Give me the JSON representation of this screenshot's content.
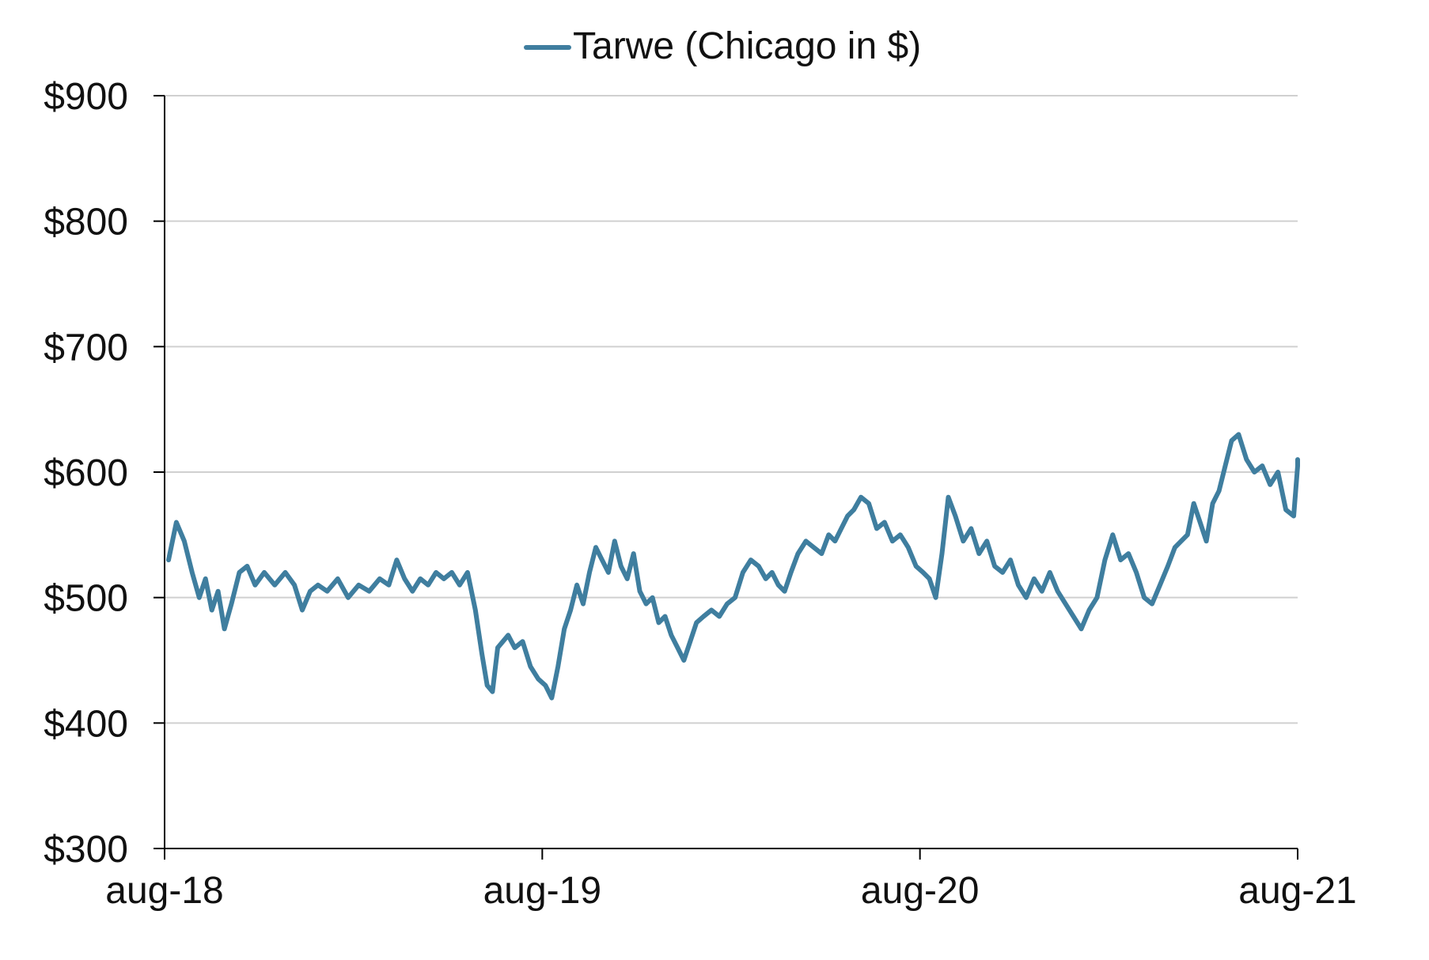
{
  "chart_data": {
    "type": "line",
    "title": "",
    "xlabel": "",
    "ylabel": "",
    "legend_position": "top-center",
    "grid": true,
    "colors": {
      "series": "#3f7e9f",
      "grid": "#d0d0d0",
      "axis": "#000000",
      "text": "#111111"
    },
    "ylim": [
      300,
      900
    ],
    "y_ticks": [
      300,
      400,
      500,
      600,
      700,
      800,
      900
    ],
    "y_tick_labels": [
      "$300",
      "$400",
      "$500",
      "$600",
      "$700",
      "$800",
      "$900"
    ],
    "xlim": [
      "2018-08",
      "2021-08"
    ],
    "x_ticks": [
      "2018-08",
      "2019-08",
      "2020-08",
      "2021-08"
    ],
    "x_tick_labels": [
      "aug-18",
      "aug-19",
      "aug-20",
      "aug-21"
    ],
    "series": [
      {
        "name": "Tarwe (Chicago in $)",
        "points": [
          [
            "2018-08",
            530
          ],
          [
            "2018-08",
            560
          ],
          [
            "2018-08",
            545
          ],
          [
            "2018-08",
            520
          ],
          [
            "2018-09",
            500
          ],
          [
            "2018-09",
            515
          ],
          [
            "2018-09",
            490
          ],
          [
            "2018-09",
            505
          ],
          [
            "2018-09",
            475
          ],
          [
            "2018-10",
            495
          ],
          [
            "2018-10",
            520
          ],
          [
            "2018-10",
            525
          ],
          [
            "2018-10",
            510
          ],
          [
            "2018-11",
            520
          ],
          [
            "2018-11",
            510
          ],
          [
            "2018-11",
            520
          ],
          [
            "2018-12",
            510
          ],
          [
            "2018-12",
            490
          ],
          [
            "2018-12",
            505
          ],
          [
            "2018-12",
            510
          ],
          [
            "2019-01",
            505
          ],
          [
            "2019-01",
            515
          ],
          [
            "2019-01",
            500
          ],
          [
            "2019-02",
            510
          ],
          [
            "2019-02",
            505
          ],
          [
            "2019-02",
            515
          ],
          [
            "2019-03",
            510
          ],
          [
            "2019-03",
            530
          ],
          [
            "2019-03",
            515
          ],
          [
            "2019-03",
            505
          ],
          [
            "2019-04",
            515
          ],
          [
            "2019-04",
            510
          ],
          [
            "2019-04",
            520
          ],
          [
            "2019-04",
            515
          ],
          [
            "2019-05",
            520
          ],
          [
            "2019-05",
            510
          ],
          [
            "2019-05",
            520
          ],
          [
            "2019-05",
            490
          ],
          [
            "2019-06",
            455
          ],
          [
            "2019-06",
            430
          ],
          [
            "2019-06",
            425
          ],
          [
            "2019-06",
            460
          ],
          [
            "2019-06",
            465
          ],
          [
            "2019-06",
            470
          ],
          [
            "2019-07",
            460
          ],
          [
            "2019-07",
            465
          ],
          [
            "2019-07",
            445
          ],
          [
            "2019-07",
            435
          ],
          [
            "2019-08",
            430
          ],
          [
            "2019-08",
            420
          ],
          [
            "2019-08",
            445
          ],
          [
            "2019-08",
            475
          ],
          [
            "2019-08",
            490
          ],
          [
            "2019-09",
            510
          ],
          [
            "2019-09",
            495
          ],
          [
            "2019-09",
            520
          ],
          [
            "2019-09",
            540
          ],
          [
            "2019-09",
            530
          ],
          [
            "2019-10",
            520
          ],
          [
            "2019-10",
            545
          ],
          [
            "2019-10",
            525
          ],
          [
            "2019-10",
            515
          ],
          [
            "2019-10",
            535
          ],
          [
            "2019-11",
            505
          ],
          [
            "2019-11",
            495
          ],
          [
            "2019-11",
            500
          ],
          [
            "2019-11",
            480
          ],
          [
            "2019-11",
            485
          ],
          [
            "2019-12",
            470
          ],
          [
            "2019-12",
            460
          ],
          [
            "2019-12",
            450
          ],
          [
            "2019-12",
            465
          ],
          [
            "2019-12",
            480
          ],
          [
            "2020-01",
            485
          ],
          [
            "2020-01",
            490
          ],
          [
            "2020-01",
            485
          ],
          [
            "2020-01",
            495
          ],
          [
            "2020-02",
            500
          ],
          [
            "2020-02",
            520
          ],
          [
            "2020-02",
            530
          ],
          [
            "2020-02",
            525
          ],
          [
            "2020-03",
            515
          ],
          [
            "2020-03",
            520
          ],
          [
            "2020-03",
            510
          ],
          [
            "2020-03",
            505
          ],
          [
            "2020-03",
            520
          ],
          [
            "2020-04",
            535
          ],
          [
            "2020-04",
            545
          ],
          [
            "2020-04",
            540
          ],
          [
            "2020-04",
            535
          ],
          [
            "2020-05",
            550
          ],
          [
            "2020-05",
            545
          ],
          [
            "2020-05",
            555
          ],
          [
            "2020-05",
            565
          ],
          [
            "2020-05",
            570
          ],
          [
            "2020-06",
            580
          ],
          [
            "2020-06",
            575
          ],
          [
            "2020-06",
            555
          ],
          [
            "2020-06",
            560
          ],
          [
            "2020-07",
            545
          ],
          [
            "2020-07",
            550
          ],
          [
            "2020-07",
            540
          ],
          [
            "2020-07",
            525
          ],
          [
            "2020-08",
            520
          ],
          [
            "2020-08",
            515
          ],
          [
            "2020-08",
            500
          ],
          [
            "2020-08",
            535
          ],
          [
            "2020-08",
            580
          ],
          [
            "2020-09",
            565
          ],
          [
            "2020-09",
            545
          ],
          [
            "2020-09",
            555
          ],
          [
            "2020-09",
            535
          ],
          [
            "2020-10",
            545
          ],
          [
            "2020-10",
            525
          ],
          [
            "2020-10",
            520
          ],
          [
            "2020-10",
            530
          ],
          [
            "2020-11",
            510
          ],
          [
            "2020-11",
            500
          ],
          [
            "2020-11",
            515
          ],
          [
            "2020-11",
            505
          ],
          [
            "2020-12",
            520
          ],
          [
            "2020-12",
            505
          ],
          [
            "2020-12",
            495
          ],
          [
            "2020-12",
            485
          ],
          [
            "2021-01",
            475
          ],
          [
            "2021-01",
            490
          ],
          [
            "2021-01",
            500
          ],
          [
            "2021-01",
            530
          ],
          [
            "2021-02",
            550
          ],
          [
            "2021-02",
            530
          ],
          [
            "2021-02",
            535
          ],
          [
            "2021-02",
            520
          ],
          [
            "2021-03",
            500
          ],
          [
            "2021-03",
            495
          ],
          [
            "2021-03",
            510
          ],
          [
            "2021-03",
            525
          ],
          [
            "2021-04",
            540
          ],
          [
            "2021-04",
            545
          ],
          [
            "2021-04",
            550
          ],
          [
            "2021-04",
            575
          ],
          [
            "2021-04",
            560
          ],
          [
            "2021-05",
            545
          ],
          [
            "2021-05",
            575
          ],
          [
            "2021-05",
            585
          ],
          [
            "2021-05",
            605
          ],
          [
            "2021-05",
            625
          ],
          [
            "2021-06",
            630
          ],
          [
            "2021-06",
            610
          ],
          [
            "2021-06",
            600
          ],
          [
            "2021-06",
            605
          ],
          [
            "2021-07",
            590
          ],
          [
            "2021-07",
            600
          ],
          [
            "2021-07",
            570
          ],
          [
            "2021-07",
            565
          ],
          [
            "2021-08",
            605
          ],
          [
            "2021-08",
            610
          ]
        ]
      }
    ]
  }
}
